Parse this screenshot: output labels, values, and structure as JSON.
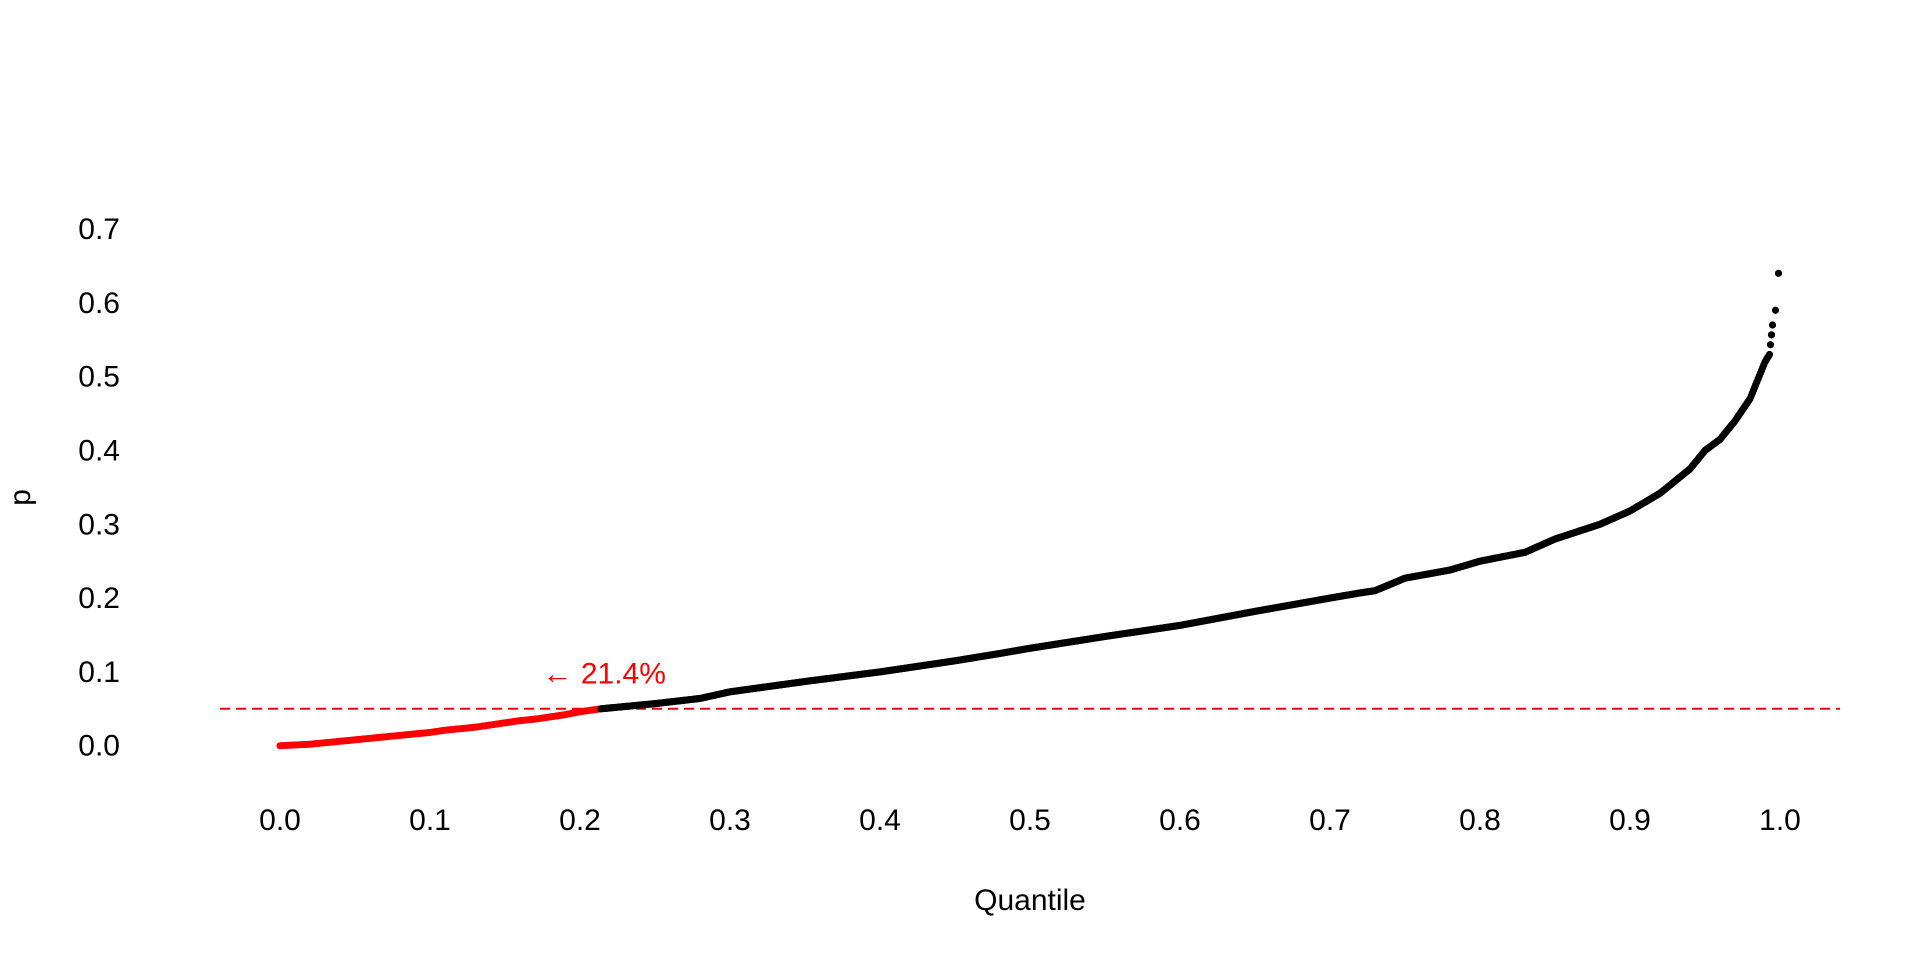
{
  "chart_data": {
    "type": "scatter",
    "xlabel": "Quantile",
    "ylabel": "p",
    "xlim": [
      -0.04,
      1.04
    ],
    "ylim": [
      -0.06,
      0.78
    ],
    "x_ticks": [
      0.0,
      0.1,
      0.2,
      0.3,
      0.4,
      0.5,
      0.6,
      0.7,
      0.8,
      0.9,
      1.0
    ],
    "x_tick_labels": [
      "0.0",
      "0.1",
      "0.2",
      "0.3",
      "0.4",
      "0.5",
      "0.6",
      "0.7",
      "0.8",
      "0.9",
      "1.0"
    ],
    "y_ticks": [
      0.0,
      0.1,
      0.2,
      0.3,
      0.4,
      0.5,
      0.6,
      0.7
    ],
    "y_tick_labels": [
      "0.0",
      "0.1",
      "0.2",
      "0.3",
      "0.4",
      "0.5",
      "0.6",
      "0.7"
    ],
    "grid": false,
    "threshold": {
      "y": 0.05,
      "style": "dashed",
      "color": "#ff0000"
    },
    "annotation": {
      "text": "← 21.4%",
      "x": 0.175,
      "y": 0.098,
      "color": "#ff0000"
    },
    "split_quantile": 0.214,
    "series": [
      {
        "color": "#ff0000",
        "points": [
          [
            0.0,
            0.0
          ],
          [
            0.01,
            0.001
          ],
          [
            0.02,
            0.002
          ],
          [
            0.03,
            0.004
          ],
          [
            0.04,
            0.006
          ],
          [
            0.05,
            0.008
          ],
          [
            0.06,
            0.01
          ],
          [
            0.07,
            0.012
          ],
          [
            0.08,
            0.014
          ],
          [
            0.09,
            0.016
          ],
          [
            0.1,
            0.018
          ],
          [
            0.11,
            0.021
          ],
          [
            0.12,
            0.023
          ],
          [
            0.13,
            0.025
          ],
          [
            0.14,
            0.028
          ],
          [
            0.15,
            0.031
          ],
          [
            0.16,
            0.034
          ],
          [
            0.17,
            0.036
          ],
          [
            0.18,
            0.039
          ],
          [
            0.19,
            0.042
          ],
          [
            0.2,
            0.046
          ],
          [
            0.214,
            0.05
          ]
        ]
      },
      {
        "color": "#000000",
        "points": [
          [
            0.214,
            0.05
          ],
          [
            0.25,
            0.057
          ],
          [
            0.28,
            0.064
          ],
          [
            0.3,
            0.073
          ],
          [
            0.35,
            0.087
          ],
          [
            0.4,
            0.1
          ],
          [
            0.45,
            0.115
          ],
          [
            0.48,
            0.125
          ],
          [
            0.5,
            0.132
          ],
          [
            0.55,
            0.148
          ],
          [
            0.6,
            0.163
          ],
          [
            0.65,
            0.182
          ],
          [
            0.7,
            0.2
          ],
          [
            0.72,
            0.207
          ],
          [
            0.73,
            0.21
          ],
          [
            0.75,
            0.227
          ],
          [
            0.78,
            0.238
          ],
          [
            0.8,
            0.25
          ],
          [
            0.83,
            0.262
          ],
          [
            0.85,
            0.28
          ],
          [
            0.88,
            0.3
          ],
          [
            0.9,
            0.318
          ],
          [
            0.92,
            0.342
          ],
          [
            0.94,
            0.375
          ],
          [
            0.95,
            0.4
          ],
          [
            0.96,
            0.415
          ],
          [
            0.97,
            0.44
          ],
          [
            0.98,
            0.47
          ],
          [
            0.99,
            0.52
          ],
          [
            0.993,
            0.53
          ],
          [
            0.995,
            0.57
          ],
          [
            0.997,
            0.59
          ],
          [
            0.999,
            0.64
          ],
          [
            1.0,
            0.713
          ]
        ]
      }
    ]
  }
}
